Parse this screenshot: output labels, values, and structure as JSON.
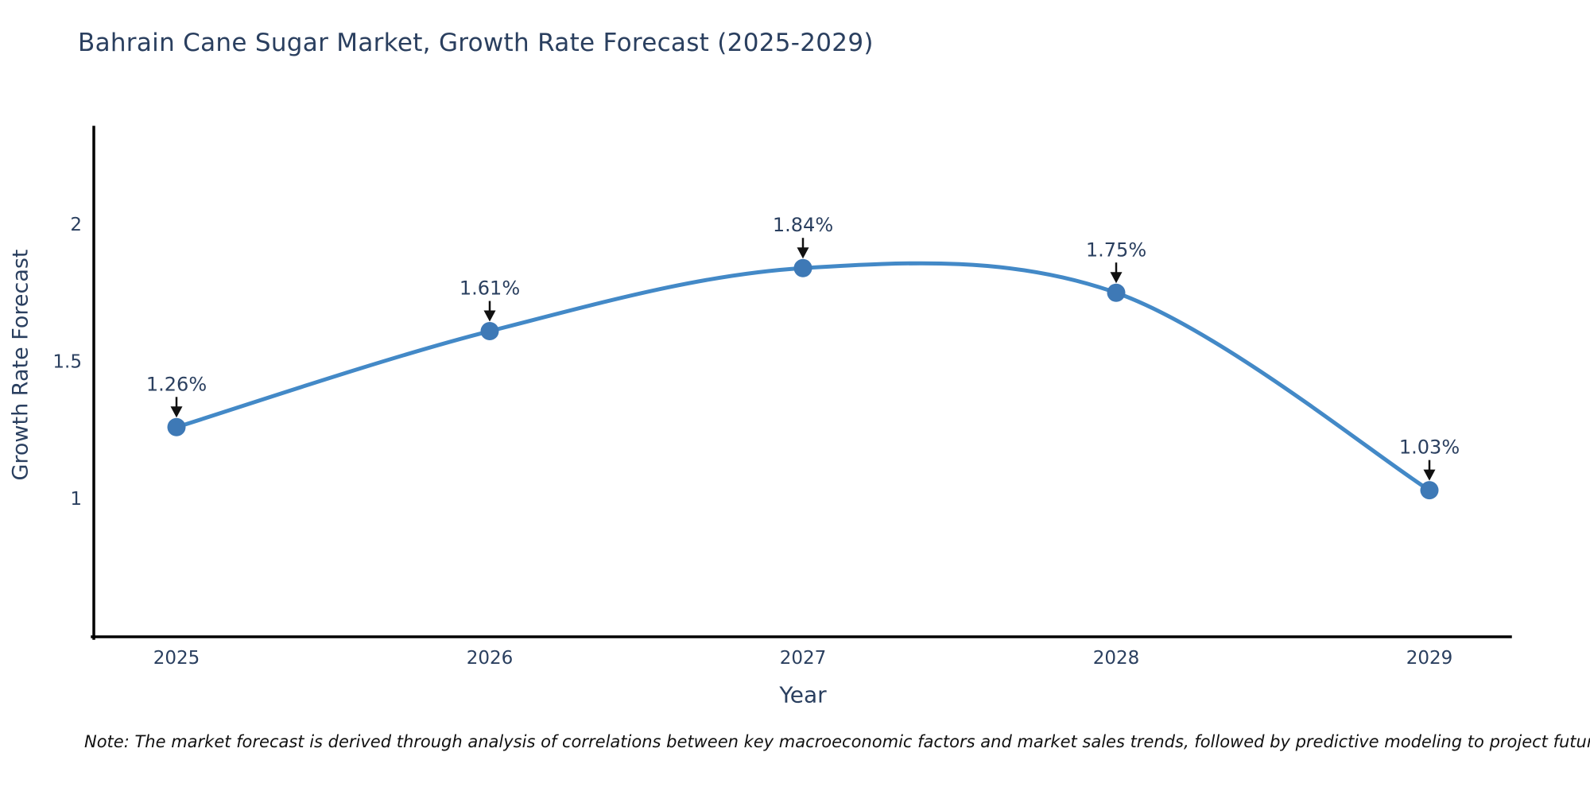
{
  "header": {
    "title": "Bahrain Cane Sugar Market, Growth Rate Forecast (2025-2029)"
  },
  "chart_data": {
    "type": "line",
    "title": "Bahrain Cane Sugar Market, Growth Rate Forecast (2025-2029)",
    "xlabel": "Year",
    "ylabel": "Growth Rate Forecast",
    "categories": [
      "2025",
      "2026",
      "2027",
      "2028",
      "2029"
    ],
    "series": [
      {
        "name": "Growth Rate Forecast",
        "values": [
          1.26,
          1.61,
          1.84,
          1.75,
          1.03
        ],
        "point_labels": [
          "1.26%",
          "1.61%",
          "1.84%",
          "1.75%",
          "1.03%"
        ]
      }
    ],
    "yticks": [
      1,
      1.5,
      2
    ],
    "ylim": [
      0.5,
      2.35
    ],
    "line_shape": "spline",
    "markers": true,
    "grid": false,
    "legend_position": "none",
    "colors": {
      "line": "#4389c7",
      "marker": "#3e79b6",
      "axis": "#000000",
      "text": "#2a3f5f",
      "arrow": "#111111"
    }
  },
  "footnote": {
    "text": "Note: The market forecast is derived through analysis of correlations between key macroeconomic factors and market sales trends, followed by predictive modeling to project future sales"
  }
}
